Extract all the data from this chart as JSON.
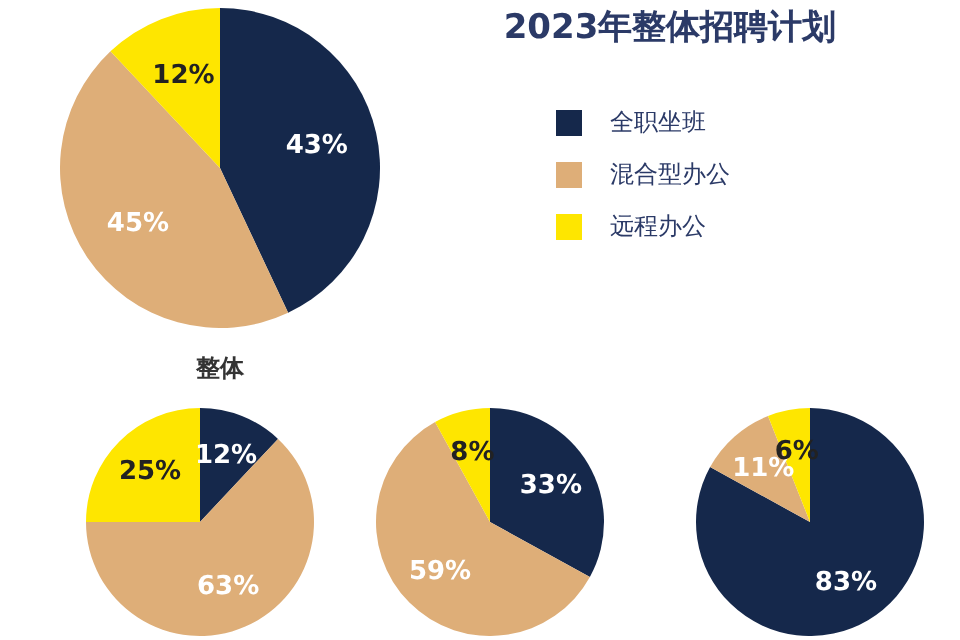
{
  "chart_data": [
    {
      "type": "pie",
      "title": "2023年整体招聘计划",
      "annotations": [
        "整体"
      ],
      "categories": [
        "全职坐班",
        "混合型办公",
        "远程办公"
      ],
      "values": [
        43,
        45,
        12
      ],
      "colors": [
        "#15284b",
        "#deae78",
        "#fee600"
      ],
      "value_labels": [
        "43%",
        "45%",
        "12%"
      ],
      "legend": "right"
    },
    {
      "type": "pie",
      "categories": [
        null,
        null,
        null
      ],
      "values": [
        12,
        63,
        25
      ],
      "colors": [
        "#15284b",
        "#deae78",
        "#fee600"
      ],
      "value_labels": [
        "12%",
        "63%",
        "25%"
      ]
    },
    {
      "type": "pie",
      "categories": [
        null,
        null,
        null
      ],
      "values": [
        33,
        59,
        8
      ],
      "colors": [
        "#15284b",
        "#deae78",
        "#fee600"
      ],
      "value_labels": [
        "33%",
        "59%",
        "8%"
      ]
    },
    {
      "type": "pie",
      "categories": [
        null,
        null,
        null
      ],
      "values": [
        83,
        11,
        6
      ],
      "colors": [
        "#15284b",
        "#deae78",
        "#fee600"
      ],
      "value_labels": [
        "83%",
        "11%",
        "6%"
      ]
    }
  ]
}
